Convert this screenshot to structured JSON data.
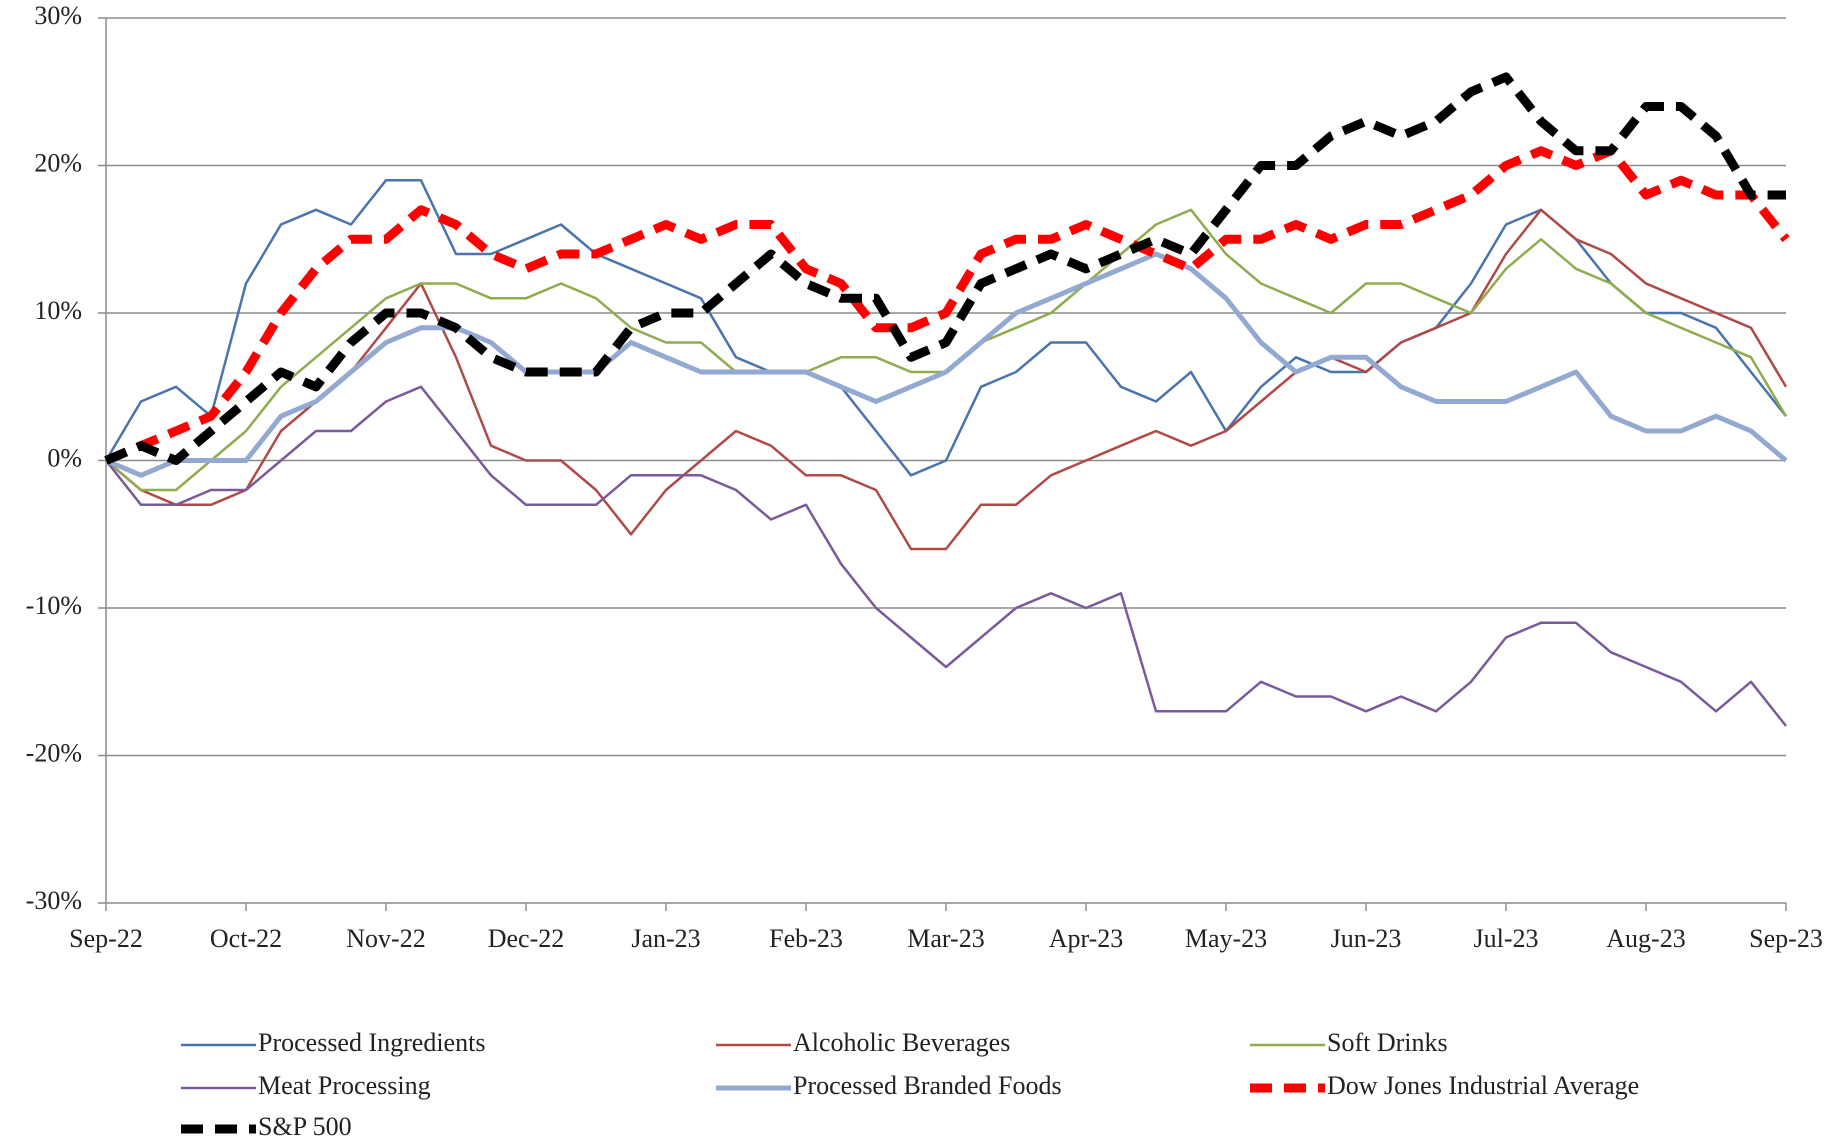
{
  "chart_data": {
    "type": "line",
    "x": [
      0,
      0.25,
      0.5,
      0.75,
      1,
      1.25,
      1.5,
      1.75,
      2,
      2.25,
      2.5,
      2.75,
      3,
      3.25,
      3.5,
      3.75,
      4,
      4.25,
      4.5,
      4.75,
      5,
      5.25,
      5.5,
      5.75,
      6,
      6.25,
      6.5,
      6.75,
      7,
      7.25,
      7.5,
      7.75,
      8,
      8.25,
      8.5,
      8.75,
      9,
      9.25,
      9.5,
      9.75,
      10,
      10.25,
      10.5,
      10.75,
      11,
      11.25,
      11.5,
      11.75,
      12
    ],
    "xlim": [
      0,
      12
    ],
    "xticks": [
      {
        "value": 0,
        "label": "Sep-22"
      },
      {
        "value": 1,
        "label": "Oct-22"
      },
      {
        "value": 2,
        "label": "Nov-22"
      },
      {
        "value": 3,
        "label": "Dec-22"
      },
      {
        "value": 4,
        "label": "Jan-23"
      },
      {
        "value": 5,
        "label": "Feb-23"
      },
      {
        "value": 6,
        "label": "Mar-23"
      },
      {
        "value": 7,
        "label": "Apr-23"
      },
      {
        "value": 8,
        "label": "May-23"
      },
      {
        "value": 9,
        "label": "Jun-23"
      },
      {
        "value": 10,
        "label": "Jul-23"
      },
      {
        "value": 11,
        "label": "Aug-23"
      },
      {
        "value": 12,
        "label": "Sep-23"
      }
    ],
    "ylim": [
      -30,
      30
    ],
    "yticks": [
      {
        "value": -30,
        "label": "-30%"
      },
      {
        "value": -20,
        "label": "-20%"
      },
      {
        "value": -10,
        "label": "-10%"
      },
      {
        "value": 0,
        "label": "0%"
      },
      {
        "value": 10,
        "label": "10%"
      },
      {
        "value": 20,
        "label": "20%"
      },
      {
        "value": 30,
        "label": "30%"
      }
    ],
    "grid": true,
    "legend": "bottom",
    "series": [
      {
        "name": "Processed Ingredients",
        "color": "#4a74ad",
        "line_width": 2.5,
        "dashed": false,
        "values": [
          0,
          4,
          5,
          3,
          12,
          16,
          17,
          16,
          19,
          19,
          14,
          14,
          15,
          16,
          14,
          13,
          12,
          11,
          7,
          6,
          6,
          5,
          2,
          -1,
          0,
          5,
          6,
          8,
          8,
          5,
          4,
          6,
          2,
          5,
          7,
          6,
          6,
          8,
          9,
          12,
          16,
          17,
          15,
          12,
          10,
          10,
          9,
          6,
          3
        ]
      },
      {
        "name": "Alcoholic Beverages",
        "color": "#b04a46",
        "line_width": 2.5,
        "dashed": false,
        "values": [
          0,
          -2,
          -3,
          -3,
          -2,
          2,
          4,
          6,
          9,
          12,
          7,
          1,
          0,
          0,
          -2,
          -5,
          -2,
          0,
          2,
          1,
          -1,
          -1,
          -2,
          -6,
          -6,
          -3,
          -3,
          -1,
          0,
          1,
          2,
          1,
          2,
          4,
          6,
          7,
          6,
          8,
          9,
          10,
          14,
          17,
          15,
          14,
          12,
          11,
          10,
          9,
          5
        ]
      },
      {
        "name": "Soft Drinks",
        "color": "#8fac4f",
        "line_width": 2.5,
        "dashed": false,
        "values": [
          0,
          -2,
          -2,
          0,
          2,
          5,
          7,
          9,
          11,
          12,
          12,
          11,
          11,
          12,
          11,
          9,
          8,
          8,
          6,
          6,
          6,
          7,
          7,
          6,
          6,
          8,
          9,
          10,
          12,
          14,
          16,
          17,
          14,
          12,
          11,
          10,
          12,
          12,
          11,
          10,
          13,
          15,
          13,
          12,
          10,
          9,
          8,
          7,
          3
        ]
      },
      {
        "name": "Meat Processing",
        "color": "#7a5a9c",
        "line_width": 2.5,
        "dashed": false,
        "values": [
          0,
          -3,
          -3,
          -2,
          -2,
          0,
          2,
          2,
          4,
          5,
          2,
          -1,
          -3,
          -3,
          -3,
          -1,
          -1,
          -1,
          -2,
          -4,
          -3,
          -7,
          -10,
          -12,
          -14,
          -12,
          -10,
          -9,
          -10,
          -9,
          -17,
          -17,
          -17,
          -15,
          -16,
          -16,
          -17,
          -16,
          -17,
          -15,
          -12,
          -11,
          -11,
          -13,
          -14,
          -15,
          -17,
          -15,
          -18
        ]
      },
      {
        "name": "Processed Branded Foods",
        "color": "#93a9d2",
        "line_width": 5,
        "dashed": false,
        "values": [
          0,
          -1,
          0,
          0,
          0,
          3,
          4,
          6,
          8,
          9,
          9,
          8,
          6,
          6,
          6,
          8,
          7,
          6,
          6,
          6,
          6,
          5,
          4,
          5,
          6,
          8,
          10,
          11,
          12,
          13,
          14,
          13,
          11,
          8,
          6,
          7,
          7,
          5,
          4,
          4,
          4,
          5,
          6,
          3,
          2,
          2,
          3,
          2,
          0
        ]
      },
      {
        "name": "Dow Jones Industrial Average",
        "color": "#ff0000",
        "line_width": 9,
        "dashed": true,
        "values": [
          0,
          1,
          2,
          3,
          6,
          10,
          13,
          15,
          15,
          17,
          16,
          14,
          13,
          14,
          14,
          15,
          16,
          15,
          16,
          16,
          13,
          12,
          9,
          9,
          10,
          14,
          15,
          15,
          16,
          15,
          14,
          13,
          15,
          15,
          16,
          15,
          16,
          16,
          17,
          18,
          20,
          21,
          20,
          21,
          18,
          19,
          18,
          18,
          15
        ]
      },
      {
        "name": "S&P 500",
        "color": "#000000",
        "line_width": 9,
        "dashed": true,
        "values": [
          0,
          1,
          0,
          2,
          4,
          6,
          5,
          8,
          10,
          10,
          9,
          7,
          6,
          6,
          6,
          9,
          10,
          10,
          12,
          14,
          12,
          11,
          11,
          7,
          8,
          12,
          13,
          14,
          13,
          14,
          15,
          14,
          17,
          20,
          20,
          22,
          23,
          22,
          23,
          25,
          26,
          23,
          21,
          21,
          24,
          24,
          22,
          18,
          18
        ]
      }
    ]
  }
}
